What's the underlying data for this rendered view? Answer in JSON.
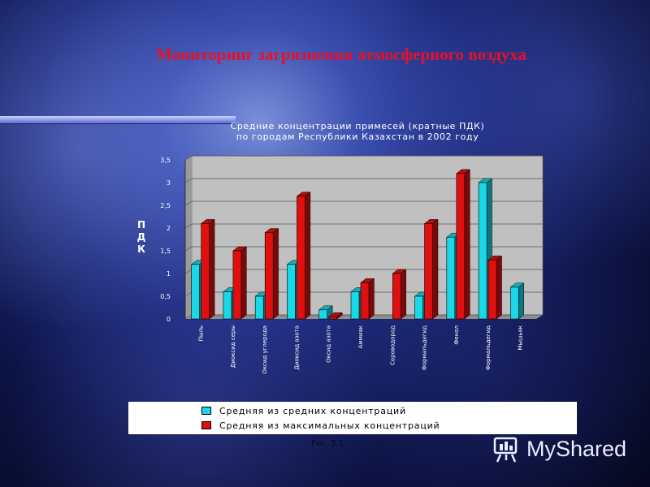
{
  "slide": {
    "title": "Мониторинг загрязнения атмосферного воздуха",
    "caption": "Рис. 5.1",
    "watermark": "MyShared",
    "watermark_icon": "presentation-board-icon"
  },
  "chart_data": {
    "type": "bar",
    "title": "Средние концентрации примесей (кратные  ПДК)",
    "subtitle": "по городам Республики Казахстан в 2002 году",
    "ylabel": "ПДК",
    "xlabel": "",
    "ylim": [
      0,
      3.5
    ],
    "yticks": [
      "0",
      "0,5",
      "1",
      "1,5",
      "2",
      "2,5",
      "3",
      "3,5"
    ],
    "grid": true,
    "legend_position": "bottom",
    "categories": [
      "Пыль",
      "Диоксид серы",
      "Оксид углерода",
      "Диоксид азота",
      "Оксид азота",
      "Аммиак",
      "Сероводород",
      "Формальдегид",
      "Фенол",
      "Формальдегид",
      "Мышьяк"
    ],
    "series": [
      {
        "name": "Средняя из средних концентраций",
        "color": "#1ad8e8",
        "values": [
          1.2,
          0.6,
          0.5,
          1.2,
          0.2,
          0.6,
          0,
          0.5,
          1.8,
          3.0,
          0.7
        ]
      },
      {
        "name": "Средняя из максимальных концентраций",
        "color": "#e01010",
        "values": [
          2.1,
          1.5,
          1.9,
          2.7,
          0.05,
          0.8,
          1.0,
          2.1,
          3.2,
          1.3,
          0
        ]
      }
    ]
  }
}
